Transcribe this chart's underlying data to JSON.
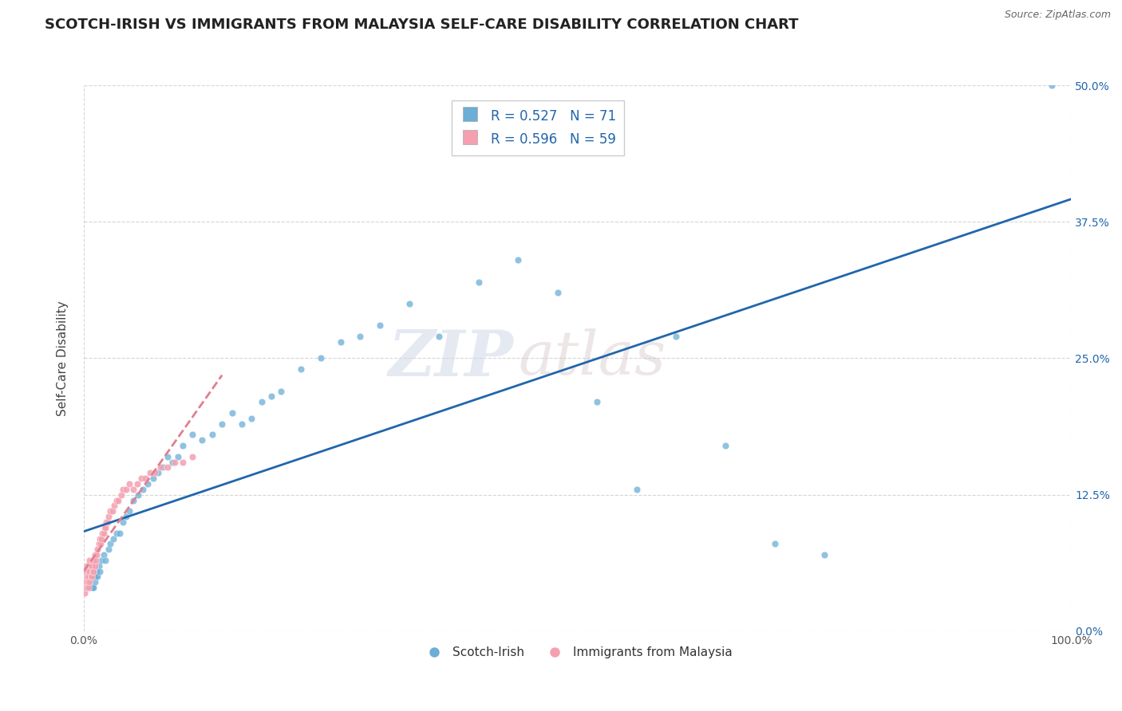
{
  "title": "SCOTCH-IRISH VS IMMIGRANTS FROM MALAYSIA SELF-CARE DISABILITY CORRELATION CHART",
  "source": "Source: ZipAtlas.com",
  "ylabel": "Self-Care Disability",
  "xlim": [
    0,
    1.0
  ],
  "ylim": [
    0,
    0.5
  ],
  "xtick_labels": [
    "0.0%",
    "100.0%"
  ],
  "ytick_labels": [
    "0.0%",
    "12.5%",
    "25.0%",
    "37.5%",
    "50.0%"
  ],
  "ytick_values": [
    0.0,
    0.125,
    0.25,
    0.375,
    0.5
  ],
  "legend_r1": "R = 0.527",
  "legend_n1": "N = 71",
  "legend_r2": "R = 0.596",
  "legend_n2": "N = 59",
  "color_blue": "#6baed6",
  "color_pink": "#f4a0b0",
  "color_trend_blue": "#2166ac",
  "color_trend_pink": "#e08090",
  "legend_label1": "Scotch-Irish",
  "legend_label2": "Immigrants from Malaysia",
  "watermark_zip": "ZIP",
  "watermark_atlas": "atlas",
  "background_color": "#ffffff",
  "grid_color": "#cccccc",
  "scotch_irish_x": [
    0.002,
    0.003,
    0.003,
    0.004,
    0.005,
    0.005,
    0.006,
    0.006,
    0.007,
    0.007,
    0.008,
    0.008,
    0.009,
    0.009,
    0.01,
    0.01,
    0.011,
    0.012,
    0.013,
    0.014,
    0.015,
    0.016,
    0.018,
    0.02,
    0.022,
    0.025,
    0.027,
    0.03,
    0.033,
    0.036,
    0.04,
    0.043,
    0.046,
    0.05,
    0.055,
    0.06,
    0.065,
    0.07,
    0.075,
    0.08,
    0.085,
    0.09,
    0.095,
    0.1,
    0.11,
    0.12,
    0.13,
    0.14,
    0.15,
    0.16,
    0.17,
    0.18,
    0.19,
    0.2,
    0.22,
    0.24,
    0.26,
    0.28,
    0.3,
    0.33,
    0.36,
    0.4,
    0.44,
    0.48,
    0.52,
    0.56,
    0.6,
    0.65,
    0.7,
    0.75,
    0.98
  ],
  "scotch_irish_y": [
    0.04,
    0.05,
    0.06,
    0.04,
    0.05,
    0.06,
    0.04,
    0.05,
    0.04,
    0.055,
    0.04,
    0.05,
    0.04,
    0.055,
    0.04,
    0.05,
    0.045,
    0.05,
    0.055,
    0.05,
    0.06,
    0.055,
    0.065,
    0.07,
    0.065,
    0.075,
    0.08,
    0.085,
    0.09,
    0.09,
    0.1,
    0.105,
    0.11,
    0.12,
    0.125,
    0.13,
    0.135,
    0.14,
    0.145,
    0.15,
    0.16,
    0.155,
    0.16,
    0.17,
    0.18,
    0.175,
    0.18,
    0.19,
    0.2,
    0.19,
    0.195,
    0.21,
    0.215,
    0.22,
    0.24,
    0.25,
    0.265,
    0.27,
    0.28,
    0.3,
    0.27,
    0.32,
    0.34,
    0.31,
    0.21,
    0.13,
    0.27,
    0.17,
    0.08,
    0.07,
    0.5
  ],
  "malaysia_x": [
    0.001,
    0.001,
    0.002,
    0.002,
    0.003,
    0.003,
    0.003,
    0.004,
    0.004,
    0.005,
    0.005,
    0.005,
    0.006,
    0.006,
    0.006,
    0.007,
    0.007,
    0.008,
    0.008,
    0.009,
    0.009,
    0.01,
    0.01,
    0.011,
    0.011,
    0.012,
    0.013,
    0.014,
    0.015,
    0.016,
    0.017,
    0.018,
    0.019,
    0.02,
    0.021,
    0.022,
    0.023,
    0.024,
    0.025,
    0.027,
    0.029,
    0.031,
    0.033,
    0.035,
    0.038,
    0.04,
    0.043,
    0.046,
    0.05,
    0.054,
    0.058,
    0.062,
    0.067,
    0.072,
    0.078,
    0.085,
    0.092,
    0.1,
    0.11
  ],
  "malaysia_y": [
    0.035,
    0.045,
    0.04,
    0.055,
    0.04,
    0.05,
    0.06,
    0.045,
    0.055,
    0.04,
    0.05,
    0.06,
    0.045,
    0.055,
    0.065,
    0.05,
    0.06,
    0.05,
    0.06,
    0.055,
    0.065,
    0.055,
    0.065,
    0.06,
    0.07,
    0.065,
    0.07,
    0.075,
    0.08,
    0.085,
    0.08,
    0.085,
    0.09,
    0.09,
    0.095,
    0.095,
    0.1,
    0.1,
    0.105,
    0.11,
    0.11,
    0.115,
    0.12,
    0.12,
    0.125,
    0.13,
    0.13,
    0.135,
    0.13,
    0.135,
    0.14,
    0.14,
    0.145,
    0.145,
    0.15,
    0.15,
    0.155,
    0.155,
    0.16
  ]
}
